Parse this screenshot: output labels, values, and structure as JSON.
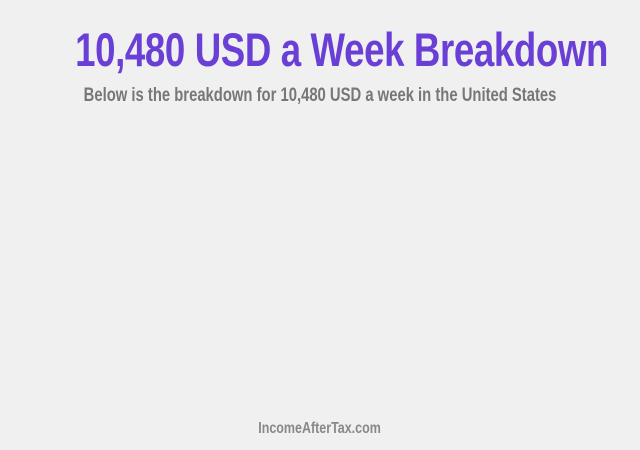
{
  "header": {
    "title": "10,480 USD a Week Breakdown",
    "subtitle": "Below is the breakdown for 10,480 USD a week in the United States"
  },
  "footer": {
    "site": "IncomeAfterTax.com"
  },
  "colors": {
    "accent": "#6a3fd6",
    "background": "#f0f0f0",
    "subtitle": "#777777"
  }
}
